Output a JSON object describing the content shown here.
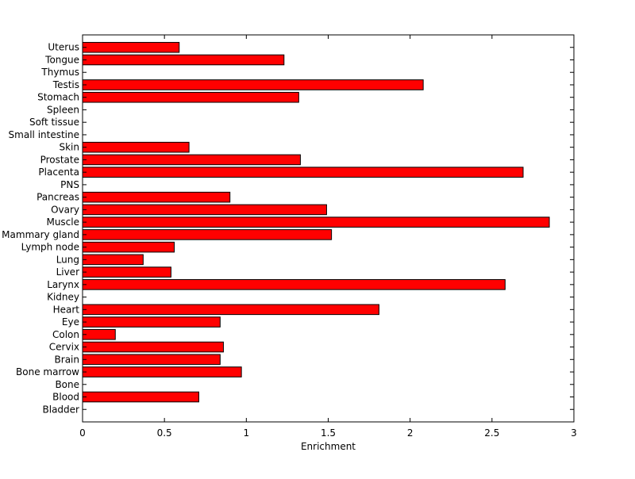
{
  "chart_data": {
    "type": "bar",
    "orientation": "horizontal",
    "title": "",
    "xlabel": "Enrichment",
    "ylabel": "",
    "xlim": [
      0,
      3
    ],
    "xticks": [
      0,
      0.5,
      1,
      1.5,
      2,
      2.5,
      3
    ],
    "xtick_labels": [
      "0",
      "0.5",
      "1",
      "1.5",
      "2",
      "2.5",
      "3"
    ],
    "grid": false,
    "legend": "none",
    "bar_color": "#ff0000",
    "bar_edge_color": "#000000",
    "categories": [
      "Bladder",
      "Blood",
      "Bone",
      "Bone marrow",
      "Brain",
      "Cervix",
      "Colon",
      "Eye",
      "Heart",
      "Kidney",
      "Larynx",
      "Liver",
      "Lung",
      "Lymph node",
      "Mammary gland",
      "Muscle",
      "Ovary",
      "Pancreas",
      "PNS",
      "Placenta",
      "Prostate",
      "Skin",
      "Small intestine",
      "Soft tissue",
      "Spleen",
      "Stomach",
      "Testis",
      "Thymus",
      "Tongue",
      "Uterus"
    ],
    "values": [
      0,
      0.71,
      0,
      0.97,
      0.84,
      0.86,
      0.2,
      0.84,
      1.81,
      0,
      2.58,
      0.54,
      0.37,
      0.56,
      1.52,
      2.85,
      1.49,
      0.9,
      0,
      2.69,
      1.33,
      0.65,
      0,
      0,
      0,
      1.32,
      2.08,
      0,
      1.23,
      0.59
    ]
  }
}
